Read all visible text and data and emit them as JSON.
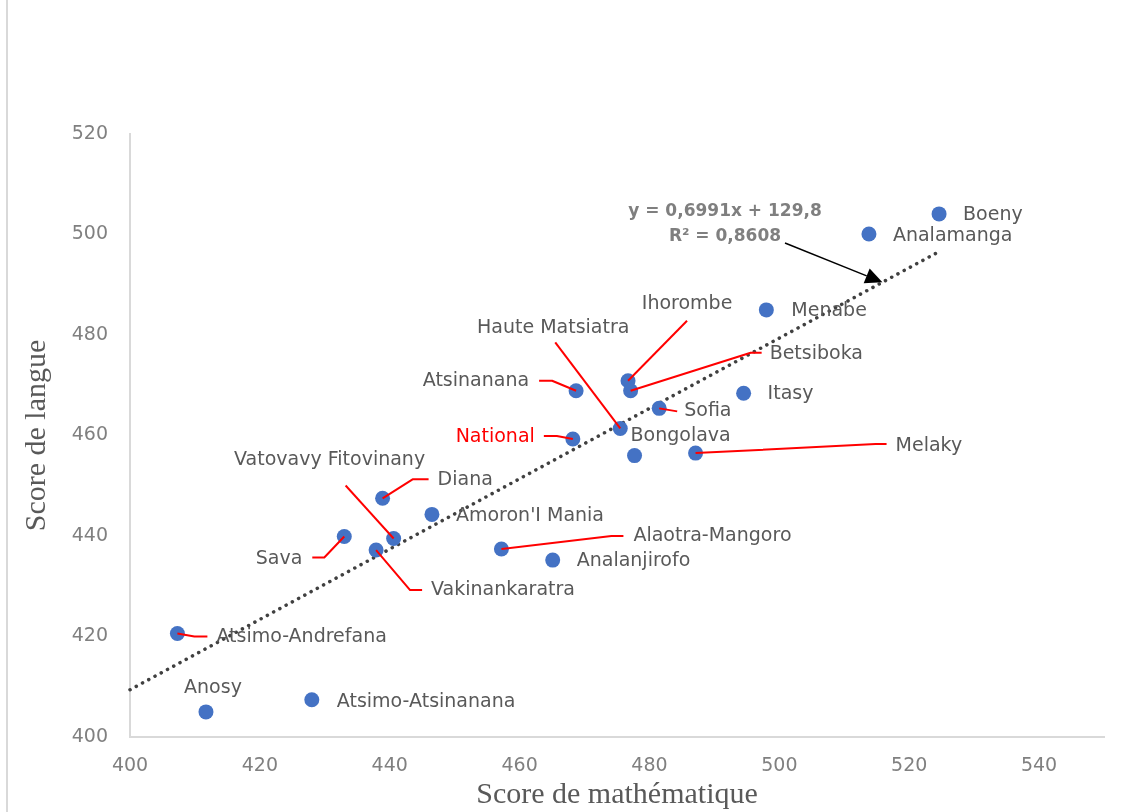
{
  "chart_data": {
    "type": "scatter",
    "xlabel": "Score de mathématique",
    "ylabel": "Score de langue",
    "xlim": [
      400,
      550
    ],
    "ylim": [
      400,
      520
    ],
    "xticks": [
      400,
      420,
      440,
      460,
      480,
      500,
      520,
      540
    ],
    "yticks": [
      400,
      420,
      440,
      460,
      480,
      500,
      520
    ],
    "marker": "circle",
    "series": [
      {
        "color": "#4472c4",
        "x": [
          524.6,
          513.8,
          498.0,
          494.5,
          487.1,
          476.7,
          477.1,
          481.5,
          475.5,
          477.7,
          468.7,
          468.2,
          438.9,
          446.5,
          440.6,
          433.0,
          437.9,
          457.2,
          465.1,
          407.3,
          411.7,
          428.0
        ],
        "values": [
          504.1,
          500.1,
          485.0,
          468.4,
          456.5,
          470.9,
          468.9,
          465.4,
          461.4,
          456.0,
          468.9,
          459.3,
          447.5,
          444.3,
          439.5,
          439.9,
          437.2,
          437.4,
          435.2,
          420.6,
          405.0,
          407.4
        ]
      },
      {
        "type": "line",
        "color": "#404040",
        "x": [
          400,
          524.6
        ],
        "values": [
          409.4,
          496.6
        ],
        "marker": "none",
        "line_style": "dotted"
      }
    ],
    "annotations": [
      {
        "text": "Boeny",
        "x": 524.6,
        "y": 504.1
      },
      {
        "text": "Analamanga",
        "x": 513.8,
        "y": 500.1
      },
      {
        "text": "Menabe",
        "x": 498.0,
        "y": 485.0
      },
      {
        "text": "Itasy",
        "x": 494.5,
        "y": 468.4
      },
      {
        "text": "Melaky",
        "x": 487.1,
        "y": 456.5
      },
      {
        "text": "Ihorombe",
        "x": 476.7,
        "y": 470.9
      },
      {
        "text": "Betsiboka",
        "x": 477.1,
        "y": 468.9
      },
      {
        "text": "Sofia",
        "x": 481.5,
        "y": 465.4
      },
      {
        "text": "Haute Matsiatra",
        "x": 475.5,
        "y": 461.4
      },
      {
        "text": "Bongolava",
        "x": 477.7,
        "y": 456.0
      },
      {
        "text": "Atsinanana",
        "x": 468.7,
        "y": 468.9
      },
      {
        "text": "National",
        "x": 468.2,
        "y": 459.3
      },
      {
        "text": "Diana",
        "x": 438.9,
        "y": 447.5
      },
      {
        "text": "Amoron'I Mania",
        "x": 446.5,
        "y": 444.3
      },
      {
        "text": "Vatovavy Fitovinany",
        "x": 440.6,
        "y": 439.5
      },
      {
        "text": "Sava",
        "x": 433.0,
        "y": 439.9
      },
      {
        "text": "Vakinankaratra",
        "x": 437.9,
        "y": 437.2
      },
      {
        "text": "Alaotra-Mangoro",
        "x": 457.2,
        "y": 437.4
      },
      {
        "text": "Analanjirofo",
        "x": 465.1,
        "y": 435.2
      },
      {
        "text": "Atsimo-Andrefana",
        "x": 407.3,
        "y": 420.6
      },
      {
        "text": "Anosy",
        "x": 411.7,
        "y": 405.0
      },
      {
        "text": "Atsimo-Atsinanana",
        "x": 428.0,
        "y": 407.4
      },
      "y = 0,6991x + 129,8",
      "R² = 0,8608"
    ]
  }
}
